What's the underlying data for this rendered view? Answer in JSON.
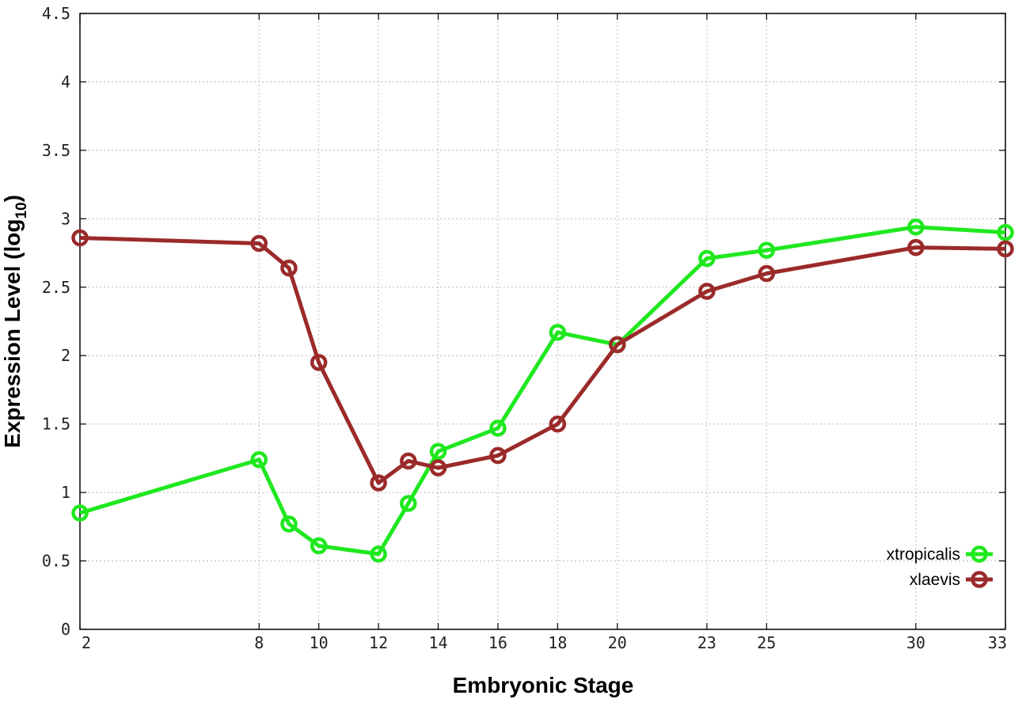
{
  "chart_data": {
    "type": "line",
    "title": "",
    "xlabel": "Embryonic Stage",
    "ylabel_main": "Expression Level (log",
    "ylabel_sub": "10",
    "ylabel_close": ")",
    "x_ticks": [
      2,
      8,
      10,
      12,
      14,
      16,
      18,
      20,
      23,
      25,
      30,
      33
    ],
    "y_ticks": [
      "0",
      "0.5",
      "1",
      "1.5",
      "2",
      "2.5",
      "3",
      "3.5",
      "4",
      "4.5"
    ],
    "xlim": [
      2,
      33
    ],
    "ylim": [
      0,
      4.5
    ],
    "grid": true,
    "legend_position": "bottom-right",
    "x": [
      2,
      8,
      9,
      10,
      12,
      13,
      14,
      16,
      18,
      20,
      23,
      25,
      30,
      33
    ],
    "series": [
      {
        "name": "xtropicalis",
        "color": "#1fe81f",
        "values": [
          0.85,
          1.24,
          0.77,
          0.61,
          0.55,
          0.92,
          1.3,
          1.47,
          2.17,
          2.08,
          2.71,
          2.77,
          2.94,
          2.9
        ]
      },
      {
        "name": "xlaevis",
        "color": "#9b2a2a",
        "values": [
          2.86,
          2.82,
          2.64,
          1.95,
          1.07,
          1.23,
          1.18,
          1.27,
          1.5,
          2.08,
          2.47,
          2.6,
          2.79,
          2.78
        ]
      }
    ]
  }
}
